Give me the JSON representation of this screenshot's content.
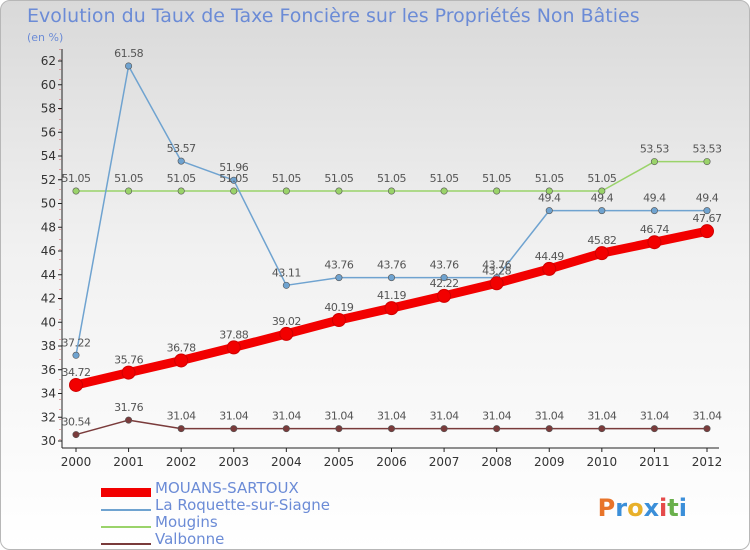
{
  "title": "Evolution du Taux de Taxe Foncière sur les Propriétés Non Bâties",
  "unit_label": "(en %)",
  "logo": {
    "text": "Proxiti",
    "colors": [
      "#e8742a",
      "#3b8fd9",
      "#e8b02a",
      "#3b8fd9",
      "#e54b4b",
      "#6ab04c",
      "#3b8fd9"
    ]
  },
  "chart_data": {
    "type": "line",
    "title": "Evolution du Taux de Taxe Foncière sur les Propriétés Non Bâties",
    "ylabel": "(en %)",
    "xlabel": "",
    "x": [
      "2000",
      "2001",
      "2002",
      "2003",
      "2004",
      "2005",
      "2006",
      "2007",
      "2008",
      "2009",
      "2010",
      "2011",
      "2012"
    ],
    "ylim": [
      30,
      62
    ],
    "yticks": [
      30,
      32,
      34,
      36,
      38,
      40,
      42,
      44,
      46,
      48,
      50,
      52,
      54,
      56,
      58,
      60,
      62
    ],
    "grid": false,
    "legend_position": "bottom-left",
    "series": [
      {
        "name": "MOUANS-SARTOUX",
        "color": "#f20000",
        "values": [
          34.72,
          35.76,
          36.78,
          37.88,
          39.02,
          40.19,
          41.19,
          42.22,
          43.28,
          44.49,
          45.82,
          46.74,
          47.67
        ],
        "labels": [
          "34.72",
          "35.76",
          "36.78",
          "37.88",
          "39.02",
          "40.19",
          "41.19",
          "42.22",
          "43.28",
          "44.49",
          "45.82",
          "46.74",
          "47.67"
        ]
      },
      {
        "name": "La Roquette-sur-Siagne",
        "color": "#6fa3d0",
        "values": [
          37.22,
          61.58,
          53.57,
          51.96,
          43.11,
          43.76,
          43.76,
          43.76,
          43.76,
          49.4,
          49.4,
          49.4,
          49.4
        ],
        "labels": [
          "37.22",
          "61.58",
          "53.57",
          "51.96",
          "43.11",
          "43.76",
          "43.76",
          "43.76",
          "43.76",
          "49.4",
          "49.4",
          "49.4",
          "49.4"
        ]
      },
      {
        "name": "Mougins",
        "color": "#9ad36a",
        "values": [
          51.05,
          51.05,
          51.05,
          51.05,
          51.05,
          51.05,
          51.05,
          51.05,
          51.05,
          51.05,
          51.05,
          53.53,
          53.53
        ],
        "labels": [
          "51.05",
          "51.05",
          "51.05",
          "51.05",
          "51.05",
          "51.05",
          "51.05",
          "51.05",
          "51.05",
          "51.05",
          "51.05",
          "53.53",
          "53.53"
        ]
      },
      {
        "name": "Valbonne",
        "color": "#7a3b3b",
        "values": [
          30.54,
          31.76,
          31.04,
          31.04,
          31.04,
          31.04,
          31.04,
          31.04,
          31.04,
          31.04,
          31.04,
          31.04,
          31.04
        ],
        "labels": [
          "30.54",
          "31.76",
          "31.04",
          "31.04",
          "31.04",
          "31.04",
          "31.04",
          "31.04",
          "31.04",
          "31.04",
          "31.04",
          "31.04",
          "31.04"
        ]
      }
    ]
  }
}
